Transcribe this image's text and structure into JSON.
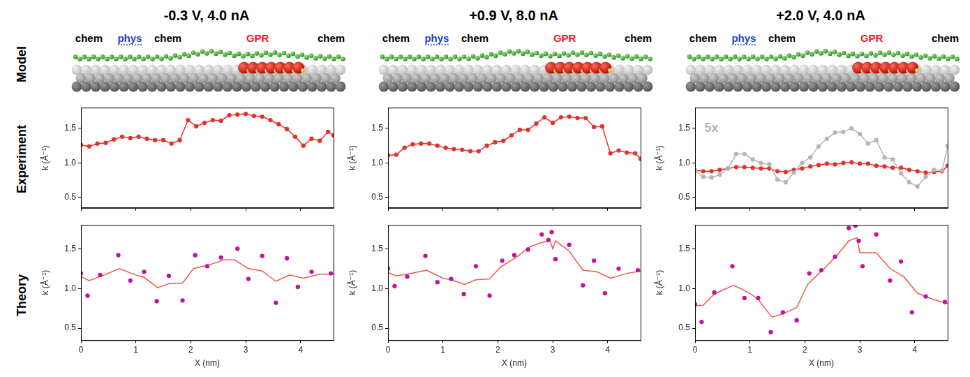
{
  "row_labels": [
    "Model",
    "Experiment",
    "Theory"
  ],
  "columns": [
    {
      "title": "-0.3 V, 4.0 nA",
      "model": {
        "labels": [
          {
            "text": "chem",
            "color": "#000000"
          },
          {
            "text": "phys",
            "color": "#1f3fd6",
            "line_style": "dotted"
          },
          {
            "text": "chem",
            "color": "#000000"
          },
          {
            "text": "GPR",
            "color": "#e0231b"
          },
          {
            "text": "chem",
            "color": "#000000"
          }
        ]
      }
    },
    {
      "title": "+0.9 V, 8.0 nA",
      "model": {
        "labels": [
          {
            "text": "chem",
            "color": "#000000"
          },
          {
            "text": "phys",
            "color": "#1f3fd6",
            "line_style": "dotted"
          },
          {
            "text": "chem",
            "color": "#000000"
          },
          {
            "text": "GPR",
            "color": "#e0231b"
          },
          {
            "text": "chem",
            "color": "#000000"
          }
        ]
      }
    },
    {
      "title": "+2.0 V, 4.0 nA",
      "model": {
        "labels": [
          {
            "text": "chem",
            "color": "#000000"
          },
          {
            "text": "phys",
            "color": "#1f3fd6",
            "line_style": "dotted"
          },
          {
            "text": "chem",
            "color": "#000000"
          },
          {
            "text": "GPR",
            "color": "#e0231b"
          },
          {
            "text": "chem",
            "color": "#000000"
          }
        ]
      }
    }
  ],
  "chart_data": [
    {
      "type": "line",
      "y_label": "k (Å⁻¹)",
      "xlim": [
        0,
        4.6
      ],
      "xticks": [
        0,
        1,
        2,
        3,
        4
      ],
      "ylim": [
        0.35,
        1.8
      ],
      "yticks": [
        0.5,
        {
          "value": 1,
          "label": "1.0"
        },
        1.5
      ],
      "grid": false,
      "tick_labels": "y",
      "x": [
        0,
        0.15,
        0.3,
        0.45,
        0.6,
        0.75,
        0.9,
        1.05,
        1.2,
        1.35,
        1.5,
        1.65,
        1.8,
        1.95,
        2.1,
        2.25,
        2.4,
        2.55,
        2.7,
        2.85,
        3.0,
        3.15,
        3.3,
        3.45,
        3.6,
        3.75,
        3.9,
        4.05,
        4.2,
        4.35,
        4.5,
        4.6
      ],
      "series": [
        {
          "type": "line",
          "marker": "circle",
          "color": "#e8302a",
          "values": [
            1.26,
            1.24,
            1.28,
            1.29,
            1.34,
            1.38,
            1.36,
            1.38,
            1.35,
            1.33,
            1.33,
            1.28,
            1.33,
            1.62,
            1.53,
            1.58,
            1.62,
            1.61,
            1.69,
            1.7,
            1.71,
            1.68,
            1.67,
            1.62,
            1.56,
            1.49,
            1.38,
            1.25,
            1.35,
            1.32,
            1.45,
            1.4
          ]
        }
      ]
    },
    {
      "type": "scatter",
      "x_label": "X (nm)",
      "y_label": "k (Å⁻¹)",
      "xlim": [
        0,
        4.6
      ],
      "xticks": [
        0,
        1,
        2,
        3,
        4
      ],
      "ylim": [
        0.35,
        1.8
      ],
      "yticks": [
        0.5,
        {
          "value": 1,
          "label": "1.0"
        },
        1.5
      ],
      "grid": false,
      "series": [
        {
          "type": "scatter",
          "marker": "circle",
          "color": "#c2129c",
          "x": [
            0,
            0.12,
            0.35,
            0.68,
            0.9,
            1.15,
            1.38,
            1.6,
            1.85,
            2.08,
            2.3,
            2.55,
            2.85,
            3.05,
            3.3,
            3.55,
            3.75,
            3.95,
            4.2,
            4.55
          ],
          "values": [
            1.19,
            0.91,
            1.17,
            1.42,
            1.1,
            1.21,
            0.84,
            1.16,
            0.85,
            1.42,
            1.28,
            1.39,
            1.5,
            1.12,
            1.41,
            0.82,
            1.38,
            1.02,
            1.21,
            1.19
          ]
        },
        {
          "type": "line",
          "marker": "none",
          "color": "#f0594a",
          "x": [
            0,
            0.15,
            0.35,
            0.7,
            1.0,
            1.15,
            1.4,
            1.6,
            1.85,
            2.05,
            2.35,
            2.6,
            2.8,
            3.05,
            3.3,
            3.55,
            3.8,
            4.05,
            4.35,
            4.6
          ],
          "values": [
            1.15,
            1.1,
            1.15,
            1.25,
            1.17,
            1.14,
            1.01,
            1.06,
            1.07,
            1.25,
            1.3,
            1.36,
            1.36,
            1.25,
            1.22,
            1.09,
            1.17,
            1.13,
            1.18,
            1.18
          ]
        }
      ]
    },
    {
      "type": "line",
      "y_label": "k (Å⁻¹)",
      "xlim": [
        0,
        4.6
      ],
      "xticks": [
        0,
        1,
        2,
        3,
        4
      ],
      "ylim": [
        0.35,
        1.8
      ],
      "yticks": [
        0.5,
        {
          "value": 1,
          "label": "1.0"
        },
        1.5
      ],
      "grid": false,
      "tick_labels": "y",
      "x": [
        0,
        0.15,
        0.3,
        0.45,
        0.6,
        0.75,
        0.9,
        1.05,
        1.2,
        1.35,
        1.5,
        1.65,
        1.8,
        1.95,
        2.1,
        2.25,
        2.4,
        2.55,
        2.7,
        2.85,
        3.0,
        3.15,
        3.3,
        3.45,
        3.6,
        3.75,
        3.9,
        4.05,
        4.2,
        4.35,
        4.5,
        4.6
      ],
      "series": [
        {
          "type": "line",
          "marker": "circle",
          "color": "#e8302a",
          "values": [
            1.11,
            1.12,
            1.22,
            1.27,
            1.28,
            1.28,
            1.25,
            1.22,
            1.2,
            1.19,
            1.17,
            1.17,
            1.25,
            1.3,
            1.32,
            1.4,
            1.48,
            1.48,
            1.57,
            1.66,
            1.58,
            1.66,
            1.67,
            1.65,
            1.65,
            1.52,
            1.53,
            1.14,
            1.18,
            1.15,
            1.14,
            1.06
          ]
        }
      ]
    },
    {
      "type": "scatter",
      "x_label": "X (nm)",
      "y_label": "k (Å⁻¹)",
      "xlim": [
        0,
        4.6
      ],
      "xticks": [
        0,
        1,
        2,
        3,
        4
      ],
      "ylim": [
        0.35,
        1.8
      ],
      "yticks": [
        0.5,
        {
          "value": 1,
          "label": "1.0"
        },
        1.5
      ],
      "grid": false,
      "series": [
        {
          "type": "scatter",
          "marker": "circle",
          "color": "#c2129c",
          "x": [
            0,
            0.12,
            0.35,
            0.68,
            0.9,
            1.15,
            1.38,
            1.6,
            1.85,
            2.08,
            2.3,
            2.55,
            2.8,
            2.92,
            2.98,
            3.05,
            3.3,
            3.55,
            3.75,
            3.95,
            4.2,
            4.55
          ],
          "values": [
            1.25,
            1.03,
            1.15,
            1.41,
            1.08,
            1.12,
            0.93,
            1.28,
            0.91,
            1.35,
            1.42,
            1.49,
            1.68,
            1.61,
            1.71,
            1.37,
            1.55,
            1.04,
            1.35,
            0.94,
            1.25,
            1.23
          ]
        },
        {
          "type": "line",
          "marker": "none",
          "color": "#f0594a",
          "x": [
            0,
            0.15,
            0.35,
            0.7,
            1.0,
            1.15,
            1.4,
            1.6,
            1.85,
            2.05,
            2.35,
            2.6,
            2.8,
            2.95,
            3.0,
            3.05,
            3.3,
            3.55,
            3.8,
            4.05,
            4.35,
            4.6
          ],
          "values": [
            1.2,
            1.16,
            1.18,
            1.23,
            1.13,
            1.11,
            1.05,
            1.11,
            1.12,
            1.27,
            1.4,
            1.53,
            1.58,
            1.6,
            1.5,
            1.6,
            1.47,
            1.23,
            1.21,
            1.13,
            1.19,
            1.22
          ]
        }
      ]
    },
    {
      "type": "line",
      "y_label": "k (Å⁻¹)",
      "xlim": [
        0,
        4.6
      ],
      "xticks": [
        0,
        1,
        2,
        3,
        4
      ],
      "ylim": [
        0.35,
        1.8
      ],
      "yticks": [
        0.5,
        {
          "value": 1,
          "label": "1.0"
        },
        1.5
      ],
      "grid": false,
      "tick_labels": "y",
      "x": [
        0,
        0.15,
        0.3,
        0.45,
        0.6,
        0.75,
        0.9,
        1.05,
        1.2,
        1.35,
        1.5,
        1.65,
        1.8,
        1.95,
        2.1,
        2.25,
        2.4,
        2.55,
        2.7,
        2.85,
        3.0,
        3.15,
        3.3,
        3.45,
        3.6,
        3.75,
        3.9,
        4.05,
        4.2,
        4.35,
        4.5,
        4.6
      ],
      "annotations": [
        {
          "text": "5x",
          "x": 0.3,
          "y": 1.5,
          "color": "#b5b5b5"
        }
      ],
      "series": [
        {
          "type": "line",
          "marker": "circle",
          "color": "#b5b5b5",
          "values": [
            0.88,
            0.8,
            0.79,
            0.83,
            0.92,
            1.13,
            1.13,
            1.05,
            1.0,
            0.98,
            0.76,
            0.72,
            0.86,
            1.0,
            1.08,
            1.24,
            1.35,
            1.44,
            1.45,
            1.5,
            1.42,
            1.28,
            1.33,
            1.08,
            1.05,
            0.85,
            0.72,
            0.66,
            0.8,
            0.9,
            0.89,
            1.25
          ]
        },
        {
          "type": "line",
          "marker": "circle",
          "color": "#e8302a",
          "values": [
            0.89,
            0.88,
            0.88,
            0.9,
            0.92,
            0.94,
            0.94,
            0.93,
            0.92,
            0.92,
            0.88,
            0.87,
            0.9,
            0.92,
            0.95,
            0.97,
            0.99,
            0.98,
            1.0,
            1.01,
            0.99,
            0.99,
            0.96,
            0.95,
            0.93,
            0.93,
            0.9,
            0.88,
            0.86,
            0.87,
            0.88,
            0.96
          ]
        }
      ]
    },
    {
      "type": "scatter",
      "x_label": "X (nm)",
      "y_label": "k (Å⁻¹)",
      "xlim": [
        0,
        4.6
      ],
      "xticks": [
        0,
        1,
        2,
        3,
        4
      ],
      "ylim": [
        0.35,
        1.8
      ],
      "yticks": [
        0.5,
        {
          "value": 1,
          "label": "1.0"
        },
        1.5
      ],
      "grid": false,
      "series": [
        {
          "type": "scatter",
          "marker": "circle",
          "color": "#c2129c",
          "x": [
            0,
            0.12,
            0.35,
            0.68,
            0.9,
            1.15,
            1.38,
            1.6,
            1.85,
            2.08,
            2.3,
            2.55,
            2.8,
            2.92,
            2.98,
            3.05,
            3.3,
            3.55,
            3.75,
            3.95,
            4.2,
            4.55
          ],
          "values": [
            0.8,
            0.58,
            0.95,
            1.28,
            0.88,
            0.88,
            0.45,
            0.7,
            0.6,
            1.19,
            1.23,
            1.4,
            1.76,
            1.79,
            1.6,
            1.28,
            1.68,
            1.1,
            1.34,
            0.7,
            0.9,
            0.83
          ]
        },
        {
          "type": "line",
          "marker": "none",
          "color": "#f0594a",
          "x": [
            0,
            0.15,
            0.35,
            0.7,
            1.0,
            1.15,
            1.4,
            1.6,
            1.85,
            2.05,
            2.35,
            2.6,
            2.8,
            2.95,
            3.0,
            3.3,
            3.55,
            3.8,
            4.05,
            4.35,
            4.6
          ],
          "values": [
            0.78,
            0.79,
            0.93,
            1.04,
            0.94,
            0.86,
            0.64,
            0.68,
            0.76,
            1.05,
            1.25,
            1.43,
            1.6,
            1.64,
            1.45,
            1.45,
            1.25,
            1.15,
            0.94,
            0.86,
            0.81
          ]
        }
      ]
    }
  ]
}
